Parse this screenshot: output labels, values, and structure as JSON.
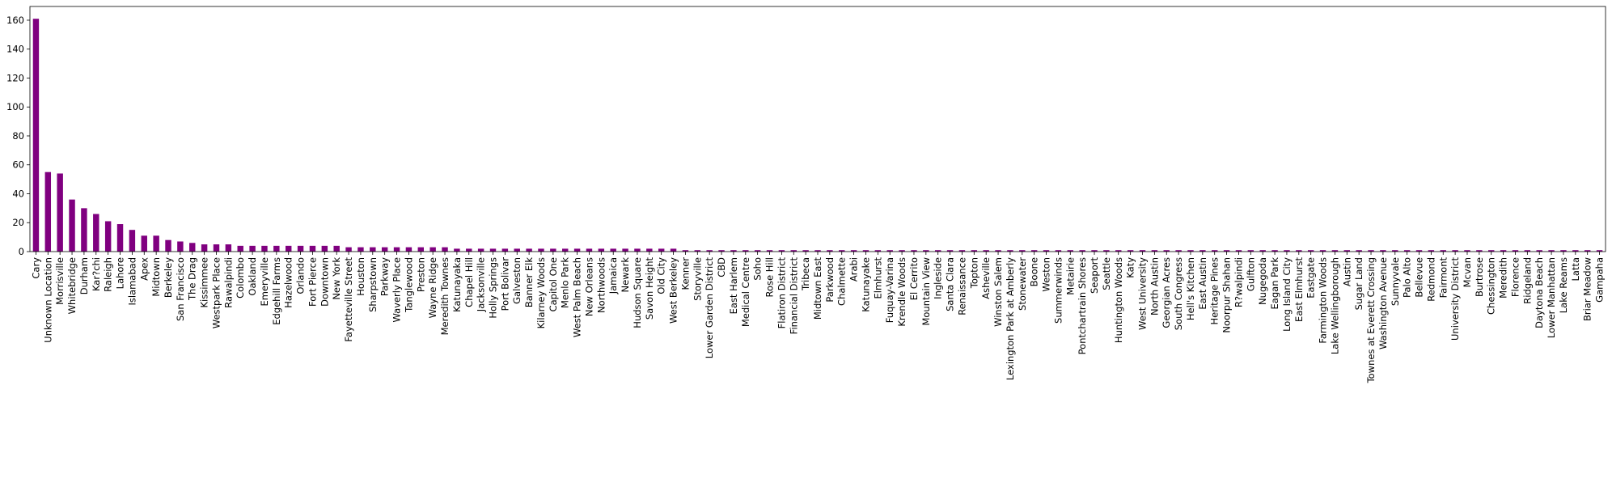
{
  "chart_data": {
    "type": "bar",
    "color": "#800080",
    "categories": [
      "Cary",
      "Unknown Location",
      "Morrisville",
      "Whitebridge",
      "Durham",
      "Kar?chi",
      "Raleigh",
      "Lahore",
      "Islamabad",
      "Apex",
      "Midtown",
      "Berkeley",
      "San Francisco",
      "The Drag",
      "Kissimmee",
      "Westpark Place",
      "Rawalpindi",
      "Colombo",
      "Oakland",
      "Emeryville",
      "Edgehill Farms",
      "Hazelwood",
      "Orlando",
      "Fort Pierce",
      "Downtown",
      "New York",
      "Fayetteville Street",
      "Houston",
      "Sharpstown",
      "Parkway",
      "Waverly Place",
      "Tanglewood",
      "Preston",
      "Wayne Ridge",
      "Meredith Townes",
      "Katunayaka",
      "Chapel Hill",
      "Jacksonville",
      "Holly Springs",
      "Port Bolivar",
      "Galveston",
      "Banner Elk",
      "Kilarney Woods",
      "Capitol One",
      "Menlo Park",
      "West Palm Beach",
      "New Orleans",
      "Northwoods",
      "Jamaica",
      "Newark",
      "Hudson Square",
      "Savon Height",
      "Old City",
      "West Berkeley",
      "Kenner",
      "Storyville",
      "Lower Garden District",
      "CBD",
      "East Harlem",
      "Medical Centre",
      "Soho",
      "Rose Hill",
      "Flatiron District",
      "Financial District",
      "Tribeca",
      "Midtown East",
      "Parkwood",
      "Chalmette",
      "Arabi",
      "Katunayake",
      "Elmhurst",
      "Fuquay-Varina",
      "Krendle Woods",
      "El Cerrito",
      "Mountain View",
      "Ingleside",
      "Santa Clara",
      "Renaissance",
      "Topton",
      "Asheville",
      "Winston Salem",
      "Lexington Park at Amberly",
      "Stonewater",
      "Boone",
      "Weston",
      "Summerwinds",
      "Metairie",
      "Pontchartrain Shores",
      "Seaport",
      "Seattle",
      "Huntington Woods",
      "Katy",
      "West University",
      "North Austin",
      "Georgian Acres",
      "South Congress",
      "Hell's Kitchen",
      "East Austin",
      "Heritage Pines",
      "Noorpur Shahan",
      "R?walpindi",
      "Gulfton",
      "Nugegoda",
      "Eagan Park",
      "Long Island City",
      "East Elmhurst",
      "Eastgate",
      "Farmington Woods",
      "Lake Wellingborough",
      "Austin",
      "Sugar Land",
      "Townes at Everett Crossing",
      "Washington Avenue",
      "Sunnyvale",
      "Palo Alto",
      "Bellevue",
      "Redmond",
      "Fairmont",
      "University District",
      "Mcvan",
      "Burtrose",
      "Chessington",
      "Meredith",
      "Florence",
      "Ridgeland",
      "Daytona Beach",
      "Lower Manhattan",
      "Lake Reams",
      "Latta",
      "Briar Meadow",
      "Gampaha"
    ],
    "values": [
      161,
      55,
      54,
      36,
      30,
      26,
      21,
      19,
      15,
      11,
      11,
      8,
      7,
      6,
      5,
      5,
      5,
      4,
      4,
      4,
      4,
      4,
      4,
      4,
      4,
      4,
      3,
      3,
      3,
      3,
      3,
      3,
      3,
      3,
      3,
      2,
      2,
      2,
      2,
      2,
      2,
      2,
      2,
      2,
      2,
      2,
      2,
      2,
      2,
      2,
      2,
      2,
      2,
      2,
      1,
      1,
      1,
      1,
      1,
      1,
      1,
      1,
      1,
      1,
      1,
      1,
      1,
      1,
      1,
      1,
      1,
      1,
      1,
      1,
      1,
      1,
      1,
      1,
      1,
      1,
      1,
      1,
      1,
      1,
      1,
      1,
      1,
      1,
      1,
      1,
      1,
      1,
      1,
      1,
      1,
      1,
      1,
      1,
      1,
      1,
      1,
      1,
      1,
      1,
      1,
      1,
      1,
      1,
      1,
      1,
      1,
      1,
      1,
      1,
      1,
      1,
      1,
      1,
      1,
      1,
      1,
      1,
      1,
      1,
      1,
      1,
      1,
      1,
      1,
      1,
      1
    ],
    "ylim": [
      0,
      169.5
    ],
    "yticks": [
      0,
      20,
      40,
      60,
      80,
      100,
      120,
      140,
      160
    ],
    "grid": false
  }
}
